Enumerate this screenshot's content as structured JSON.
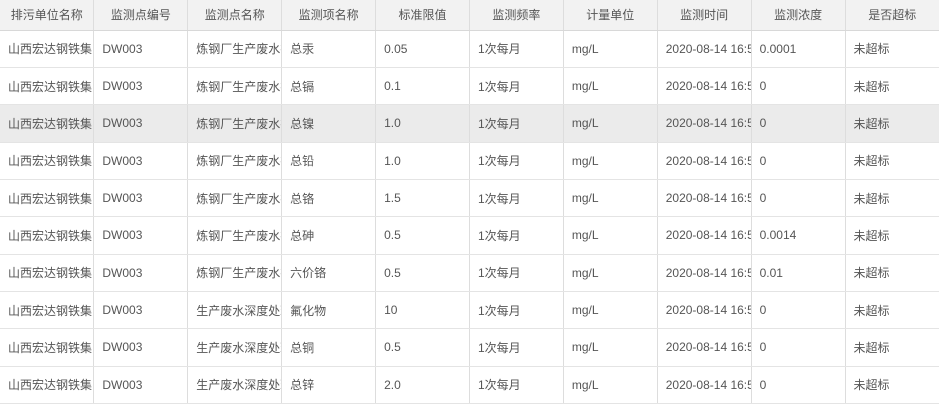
{
  "colors": {
    "header_bg": "#f2f2f2",
    "header_border": "#d8d8d8",
    "row_border": "#e4e4e4",
    "col_border": "#dddddd",
    "row_highlight": "#ebebeb",
    "text_color": "#555555",
    "row_bg": "#ffffff"
  },
  "table": {
    "columns": [
      {
        "key": "unit-name",
        "label": "排污单位名称"
      },
      {
        "key": "point-code",
        "label": "监测点编号"
      },
      {
        "key": "point-name",
        "label": "监测点名称"
      },
      {
        "key": "item-name",
        "label": "监测项名称"
      },
      {
        "key": "limit",
        "label": "标准限值"
      },
      {
        "key": "frequency",
        "label": "监测频率"
      },
      {
        "key": "measure-unit",
        "label": "计量单位"
      },
      {
        "key": "monitor-time",
        "label": "监测时间"
      },
      {
        "key": "concentration",
        "label": "监测浓度"
      },
      {
        "key": "exceed-status",
        "label": "是否超标"
      }
    ],
    "highlighted_row_index": 2,
    "rows": [
      [
        "山西宏达钢铁集团",
        "DW003",
        "炼钢厂生产废水排",
        "总汞",
        "0.05",
        "1次每月",
        "mg/L",
        "2020-08-14 16:5",
        "0.0001",
        "未超标"
      ],
      [
        "山西宏达钢铁集团",
        "DW003",
        "炼钢厂生产废水排",
        "总镉",
        "0.1",
        "1次每月",
        "mg/L",
        "2020-08-14 16:5",
        "0",
        "未超标"
      ],
      [
        "山西宏达钢铁集团",
        "DW003",
        "炼钢厂生产废水排",
        "总镍",
        "1.0",
        "1次每月",
        "mg/L",
        "2020-08-14 16:5",
        "0",
        "未超标"
      ],
      [
        "山西宏达钢铁集团",
        "DW003",
        "炼钢厂生产废水排",
        "总铅",
        "1.0",
        "1次每月",
        "mg/L",
        "2020-08-14 16:5",
        "0",
        "未超标"
      ],
      [
        "山西宏达钢铁集团",
        "DW003",
        "炼钢厂生产废水排",
        "总铬",
        "1.5",
        "1次每月",
        "mg/L",
        "2020-08-14 16:5",
        "0",
        "未超标"
      ],
      [
        "山西宏达钢铁集团",
        "DW003",
        "炼钢厂生产废水排",
        "总砷",
        "0.5",
        "1次每月",
        "mg/L",
        "2020-08-14 16:5",
        "0.0014",
        "未超标"
      ],
      [
        "山西宏达钢铁集团",
        "DW003",
        "炼钢厂生产废水排",
        "六价铬",
        "0.5",
        "1次每月",
        "mg/L",
        "2020-08-14 16:5",
        "0.01",
        "未超标"
      ],
      [
        "山西宏达钢铁集团",
        "DW003",
        "生产废水深度处理",
        "氟化物",
        "10",
        "1次每月",
        "mg/L",
        "2020-08-14 16:5",
        "0",
        "未超标"
      ],
      [
        "山西宏达钢铁集团",
        "DW003",
        "生产废水深度处理",
        "总铜",
        "0.5",
        "1次每月",
        "mg/L",
        "2020-08-14 16:5",
        "0",
        "未超标"
      ],
      [
        "山西宏达钢铁集团",
        "DW003",
        "生产废水深度处理",
        "总锌",
        "2.0",
        "1次每月",
        "mg/L",
        "2020-08-14 16:5",
        "0",
        "未超标"
      ]
    ]
  }
}
